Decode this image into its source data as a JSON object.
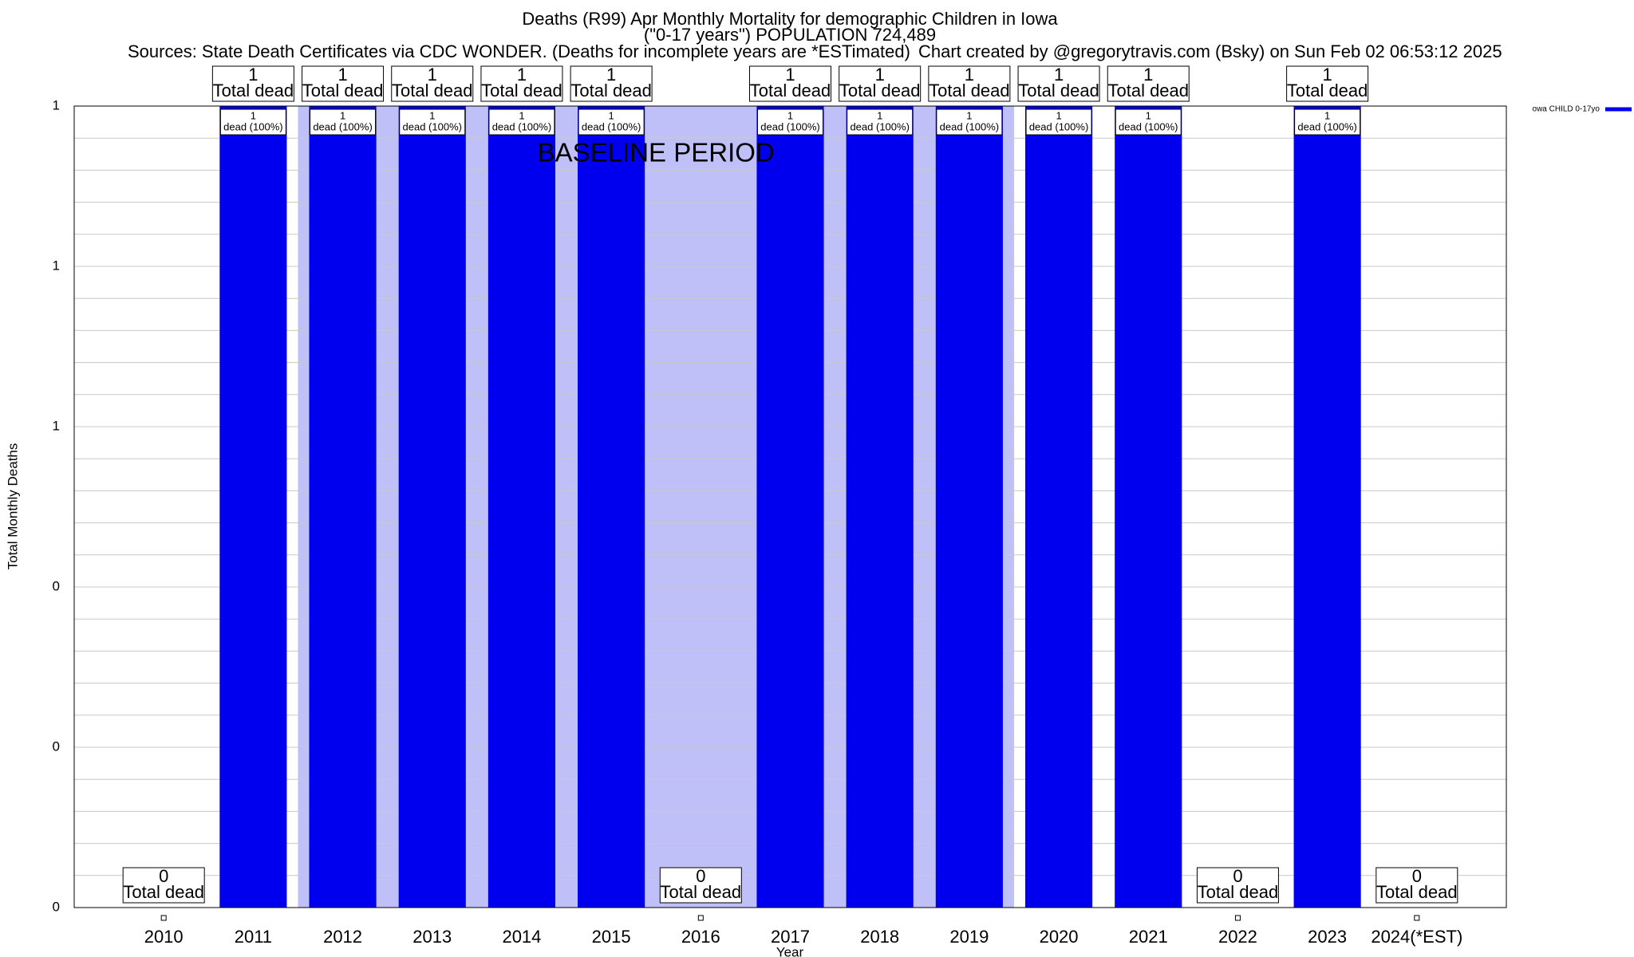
{
  "chart_data": {
    "type": "bar",
    "title": "Deaths (R99) Apr Monthly Mortality for demographic Children in Iowa",
    "subtitle": "(\"0-17 years\") POPULATION 724,489",
    "source": "Sources: State Death Certificates via CDC WONDER. (Deaths for incomplete years are *ESTimated)",
    "credit": "Chart created by @gregorytravis.com (Bsky) on Sun Feb 02 06:53:12 2025",
    "x_label": "Year",
    "y_label": "Total Monthly Deaths",
    "categories": [
      "2010",
      "2011",
      "2012",
      "2013",
      "2014",
      "2015",
      "2016",
      "2017",
      "2018",
      "2019",
      "2020",
      "2021",
      "2022",
      "2023",
      "2024(*EST)"
    ],
    "series": [
      {
        "name": "owa CHILD 0-17yo",
        "color": "#0000ee",
        "values": [
          0,
          1,
          1,
          1,
          1,
          1,
          0,
          1,
          1,
          1,
          1,
          1,
          0,
          1,
          0
        ]
      }
    ],
    "total_label": "Total dead",
    "share_label": "dead (100%)",
    "baseline": {
      "label": "BASELINE PERIOD",
      "start": "2012",
      "end": "2019",
      "color": "#c0c0f8"
    },
    "ylim": [
      0,
      1
    ],
    "yticks": [
      0,
      {
        "value": 0.2,
        "label": "0"
      },
      {
        "value": 0.4,
        "label": "0"
      },
      {
        "value": 0.6,
        "label": "1"
      },
      {
        "value": 0.8,
        "label": "1"
      },
      1
    ],
    "minor_yticks": [
      0.04,
      0.08,
      0.12,
      0.16,
      0.24,
      0.28,
      0.32,
      0.36,
      0.44,
      0.48,
      0.52,
      0.56,
      0.64,
      0.68,
      0.72,
      0.76,
      0.84,
      0.88,
      0.92,
      0.96
    ],
    "grid": true,
    "legend": "top-right"
  }
}
